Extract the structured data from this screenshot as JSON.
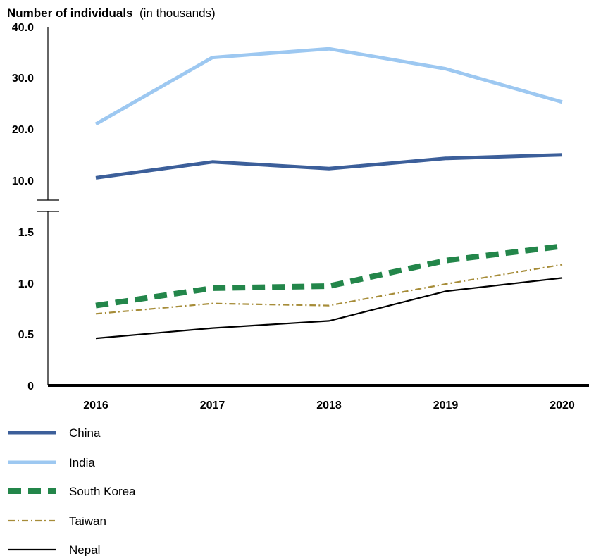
{
  "chart_data": {
    "type": "line",
    "title": "Number of individuals",
    "title_suffix": "(in thousands)",
    "x": [
      "2016",
      "2017",
      "2018",
      "2019",
      "2020"
    ],
    "y_axis_break": true,
    "upper_segment": {
      "ylim": [
        10.0,
        40.0
      ],
      "ticks": [
        "40.0",
        "30.0",
        "20.0",
        "10.0"
      ]
    },
    "lower_segment": {
      "ylim": [
        0,
        1.5
      ],
      "ticks": [
        "1.5",
        "1.0",
        "0.5",
        "0"
      ]
    },
    "series": [
      {
        "name": "China",
        "color": "#3c5f9a",
        "style": "solid-thick",
        "segment": "upper",
        "values": [
          10.5,
          13.6,
          12.3,
          14.3,
          15.0
        ]
      },
      {
        "name": "India",
        "color": "#9dc8f1",
        "style": "solid-thick",
        "segment": "upper",
        "values": [
          21.0,
          34.0,
          35.7,
          31.8,
          25.3
        ]
      },
      {
        "name": "South Korea",
        "color": "#23864a",
        "style": "dashed-thick",
        "segment": "lower",
        "values": [
          0.78,
          0.95,
          0.97,
          1.22,
          1.36
        ]
      },
      {
        "name": "Taiwan",
        "color": "#a68c38",
        "style": "dash-dot",
        "segment": "lower",
        "values": [
          0.7,
          0.8,
          0.78,
          0.99,
          1.18
        ]
      },
      {
        "name": "Nepal",
        "color": "#000000",
        "style": "solid-thin",
        "segment": "lower",
        "values": [
          0.46,
          0.56,
          0.63,
          0.92,
          1.05
        ]
      }
    ],
    "legend_position": "bottom-left",
    "grid": false
  }
}
